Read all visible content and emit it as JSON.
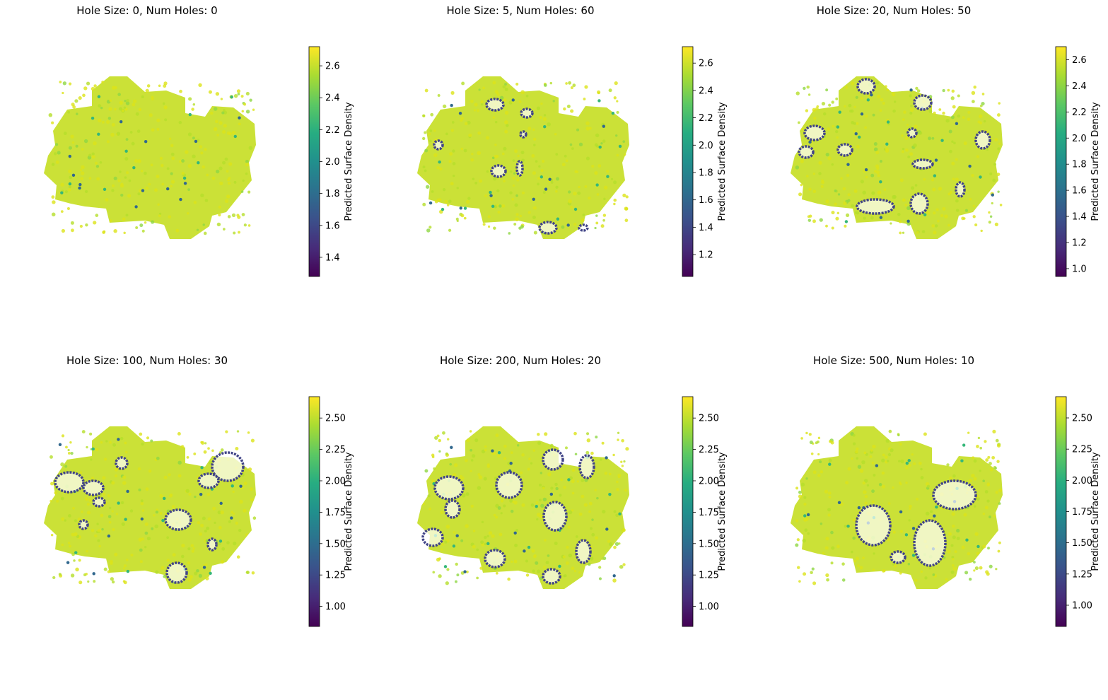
{
  "colors": {
    "viridis": [
      "#440154",
      "#472c7a",
      "#3b518b",
      "#2c718e",
      "#21908d",
      "#27ad81",
      "#5cc863",
      "#aadc32",
      "#fde725"
    ],
    "surface_bright": "#dce319",
    "surface_mid": "#c8df2c",
    "hole_outline": "#414487"
  },
  "colorbar_label": "Predicted Surface Density",
  "chart_data": [
    {
      "type": "scatter",
      "title": "Hole Size: 0, Num Holes: 0",
      "colorbar": {
        "label": "Predicted Surface Density",
        "range": [
          1.28,
          2.72
        ],
        "ticks": [
          "1.4",
          "1.6",
          "1.8",
          "2.0",
          "2.2",
          "2.4",
          "2.6"
        ],
        "tick_values": [
          1.4,
          1.6,
          1.8,
          2.0,
          2.2,
          2.4,
          2.6
        ],
        "colormap": "viridis"
      },
      "hole_size": 0,
      "num_holes": 0
    },
    {
      "type": "scatter",
      "title": "Hole Size: 5, Num Holes: 60",
      "colorbar": {
        "label": "Predicted Surface Density",
        "range": [
          1.04,
          2.72
        ],
        "ticks": [
          "1.2",
          "1.4",
          "1.6",
          "1.8",
          "2.0",
          "2.2",
          "2.4",
          "2.6"
        ],
        "tick_values": [
          1.2,
          1.4,
          1.6,
          1.8,
          2.0,
          2.2,
          2.4,
          2.6
        ],
        "colormap": "viridis"
      },
      "hole_size": 5,
      "num_holes": 60
    },
    {
      "type": "scatter",
      "title": "Hole Size: 20, Num Holes: 50",
      "colorbar": {
        "label": "Predicted Surface Density",
        "range": [
          0.94,
          2.7
        ],
        "ticks": [
          "1.0",
          "1.2",
          "1.4",
          "1.6",
          "1.8",
          "2.0",
          "2.2",
          "2.4",
          "2.6"
        ],
        "tick_values": [
          1.0,
          1.2,
          1.4,
          1.6,
          1.8,
          2.0,
          2.2,
          2.4,
          2.6
        ],
        "colormap": "viridis"
      },
      "hole_size": 20,
      "num_holes": 50
    },
    {
      "type": "scatter",
      "title": "Hole Size: 100, Num Holes: 30",
      "colorbar": {
        "label": "Predicted Surface Density",
        "range": [
          0.84,
          2.67
        ],
        "ticks": [
          "1.00",
          "1.25",
          "1.50",
          "1.75",
          "2.00",
          "2.25",
          "2.50"
        ],
        "tick_values": [
          1.0,
          1.25,
          1.5,
          1.75,
          2.0,
          2.25,
          2.5
        ],
        "colormap": "viridis"
      },
      "hole_size": 100,
      "num_holes": 30
    },
    {
      "type": "scatter",
      "title": "Hole Size: 200, Num Holes: 20",
      "colorbar": {
        "label": "Predicted Surface Density",
        "range": [
          0.84,
          2.67
        ],
        "ticks": [
          "1.00",
          "1.25",
          "1.50",
          "1.75",
          "2.00",
          "2.25",
          "2.50"
        ],
        "tick_values": [
          1.0,
          1.25,
          1.5,
          1.75,
          2.0,
          2.25,
          2.5
        ],
        "colormap": "viridis"
      },
      "hole_size": 200,
      "num_holes": 20
    },
    {
      "type": "scatter",
      "title": "Hole Size: 500, Num Holes: 10",
      "colorbar": {
        "label": "Predicted Surface Density",
        "range": [
          0.83,
          2.67
        ],
        "ticks": [
          "1.00",
          "1.25",
          "1.50",
          "1.75",
          "2.00",
          "2.25",
          "2.50"
        ],
        "tick_values": [
          1.0,
          1.25,
          1.5,
          1.75,
          2.0,
          2.25,
          2.5
        ],
        "colormap": "viridis"
      },
      "hole_size": 500,
      "num_holes": 10
    }
  ]
}
